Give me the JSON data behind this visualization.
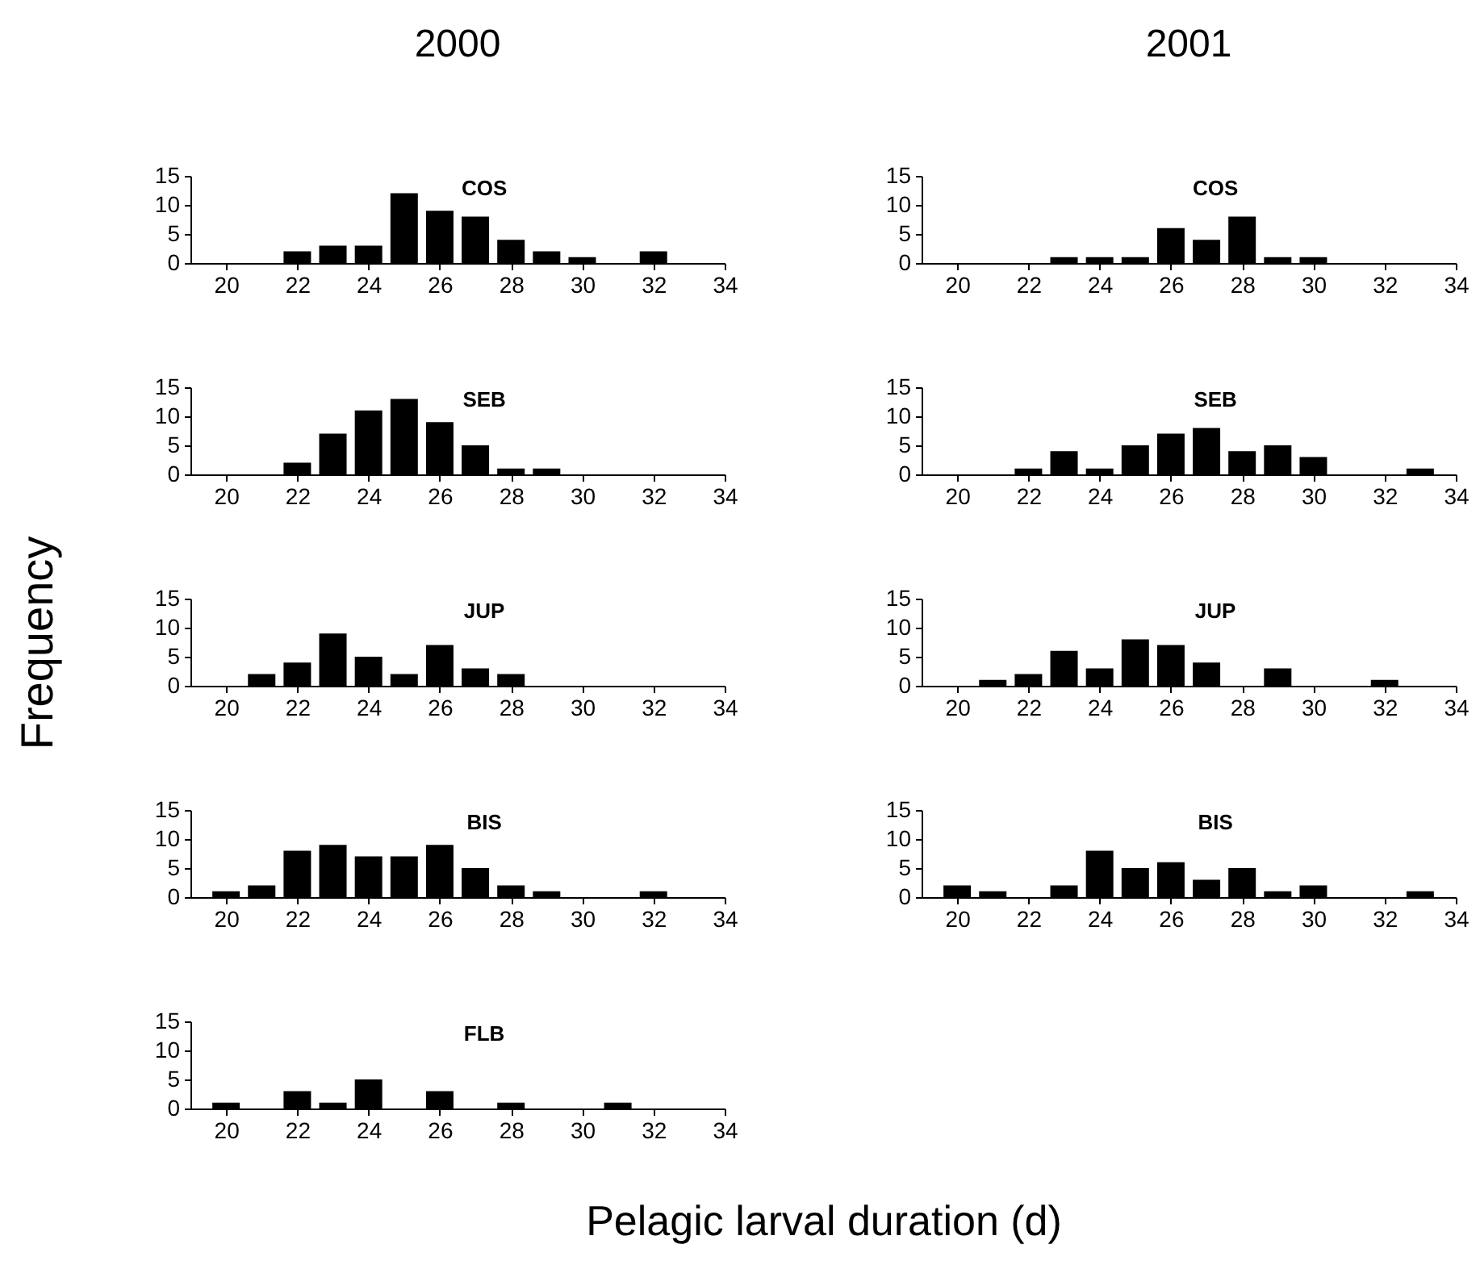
{
  "chart_data": [
    {
      "type": "bar",
      "title": "2000",
      "annotations": [
        "COS"
      ],
      "x": [
        20,
        21,
        22,
        23,
        24,
        25,
        26,
        27,
        28,
        29,
        30,
        31,
        32,
        33
      ],
      "values": [
        0,
        0,
        2,
        3,
        3,
        12,
        9,
        8,
        4,
        2,
        1,
        0,
        2,
        0
      ],
      "color": "#000000",
      "xlim": [
        19,
        34
      ],
      "xticks": [
        20,
        22,
        24,
        26,
        28,
        30,
        32,
        34
      ],
      "ylim": [
        0,
        15
      ],
      "yticks": [
        0,
        5,
        10,
        15
      ]
    },
    {
      "type": "bar",
      "title": "2001",
      "annotations": [
        "COS"
      ],
      "x": [
        20,
        21,
        22,
        23,
        24,
        25,
        26,
        27,
        28,
        29,
        30,
        31,
        32,
        33
      ],
      "values": [
        0,
        0,
        0,
        1,
        1,
        1,
        6,
        4,
        8,
        1,
        1,
        0,
        0,
        0
      ],
      "color": "#000000",
      "xlim": [
        19,
        34
      ],
      "xticks": [
        20,
        22,
        24,
        26,
        28,
        30,
        32,
        34
      ],
      "ylim": [
        0,
        15
      ],
      "yticks": [
        0,
        5,
        10,
        15
      ]
    },
    {
      "type": "bar",
      "annotations": [
        "SEB"
      ],
      "x": [
        20,
        21,
        22,
        23,
        24,
        25,
        26,
        27,
        28,
        29,
        30,
        31,
        32,
        33
      ],
      "values": [
        0,
        0,
        2,
        7,
        11,
        13,
        9,
        5,
        1,
        1,
        0,
        0,
        0,
        0
      ],
      "color": "#000000",
      "xlim": [
        19,
        34
      ],
      "xticks": [
        20,
        22,
        24,
        26,
        28,
        30,
        32,
        34
      ],
      "ylim": [
        0,
        15
      ],
      "yticks": [
        0,
        5,
        10,
        15
      ]
    },
    {
      "type": "bar",
      "annotations": [
        "SEB"
      ],
      "x": [
        20,
        21,
        22,
        23,
        24,
        25,
        26,
        27,
        28,
        29,
        30,
        31,
        32,
        33
      ],
      "values": [
        0,
        0,
        1,
        4,
        1,
        5,
        7,
        8,
        4,
        5,
        3,
        0,
        0,
        1
      ],
      "color": "#000000",
      "xlim": [
        19,
        34
      ],
      "xticks": [
        20,
        22,
        24,
        26,
        28,
        30,
        32,
        34
      ],
      "ylim": [
        0,
        15
      ],
      "yticks": [
        0,
        5,
        10,
        15
      ]
    },
    {
      "type": "bar",
      "ylabel": "Frequency",
      "annotations": [
        "JUP"
      ],
      "x": [
        20,
        21,
        22,
        23,
        24,
        25,
        26,
        27,
        28,
        29,
        30,
        31,
        32,
        33
      ],
      "values": [
        0,
        2,
        4,
        9,
        5,
        2,
        7,
        3,
        2,
        0,
        0,
        0,
        0,
        0
      ],
      "color": "#000000",
      "xlim": [
        19,
        34
      ],
      "xticks": [
        20,
        22,
        24,
        26,
        28,
        30,
        32,
        34
      ],
      "ylim": [
        0,
        15
      ],
      "yticks": [
        0,
        5,
        10,
        15
      ]
    },
    {
      "type": "bar",
      "annotations": [
        "JUP"
      ],
      "x": [
        20,
        21,
        22,
        23,
        24,
        25,
        26,
        27,
        28,
        29,
        30,
        31,
        32,
        33
      ],
      "values": [
        0,
        1,
        2,
        6,
        3,
        8,
        7,
        4,
        0,
        3,
        0,
        0,
        1,
        0
      ],
      "color": "#000000",
      "xlim": [
        19,
        34
      ],
      "xticks": [
        20,
        22,
        24,
        26,
        28,
        30,
        32,
        34
      ],
      "ylim": [
        0,
        15
      ],
      "yticks": [
        0,
        5,
        10,
        15
      ]
    },
    {
      "type": "bar",
      "annotations": [
        "BIS"
      ],
      "x": [
        20,
        21,
        22,
        23,
        24,
        25,
        26,
        27,
        28,
        29,
        30,
        31,
        32,
        33
      ],
      "values": [
        1,
        2,
        8,
        9,
        7,
        7,
        9,
        5,
        2,
        1,
        0,
        0,
        1,
        0
      ],
      "color": "#000000",
      "xlim": [
        19,
        34
      ],
      "xticks": [
        20,
        22,
        24,
        26,
        28,
        30,
        32,
        34
      ],
      "ylim": [
        0,
        15
      ],
      "yticks": [
        0,
        5,
        10,
        15
      ]
    },
    {
      "type": "bar",
      "annotations": [
        "BIS"
      ],
      "x": [
        20,
        21,
        22,
        23,
        24,
        25,
        26,
        27,
        28,
        29,
        30,
        31,
        32,
        33
      ],
      "values": [
        2,
        1,
        0,
        2,
        8,
        5,
        6,
        3,
        5,
        1,
        2,
        0,
        0,
        1
      ],
      "color": "#000000",
      "xlim": [
        19,
        34
      ],
      "xticks": [
        20,
        22,
        24,
        26,
        28,
        30,
        32,
        34
      ],
      "ylim": [
        0,
        15
      ],
      "yticks": [
        0,
        5,
        10,
        15
      ]
    },
    {
      "type": "bar",
      "xlabel": "Pelagic larval duration (d)",
      "annotations": [
        "FLB"
      ],
      "x": [
        20,
        21,
        22,
        23,
        24,
        25,
        26,
        27,
        28,
        29,
        30,
        31,
        32,
        33
      ],
      "values": [
        1,
        0,
        3,
        1,
        5,
        0,
        3,
        0,
        1,
        0,
        0,
        1,
        0,
        0
      ],
      "color": "#000000",
      "xlim": [
        19,
        34
      ],
      "xticks": [
        20,
        22,
        24,
        26,
        28,
        30,
        32,
        34
      ],
      "ylim": [
        0,
        15
      ],
      "yticks": [
        0,
        5,
        10,
        15
      ]
    }
  ]
}
